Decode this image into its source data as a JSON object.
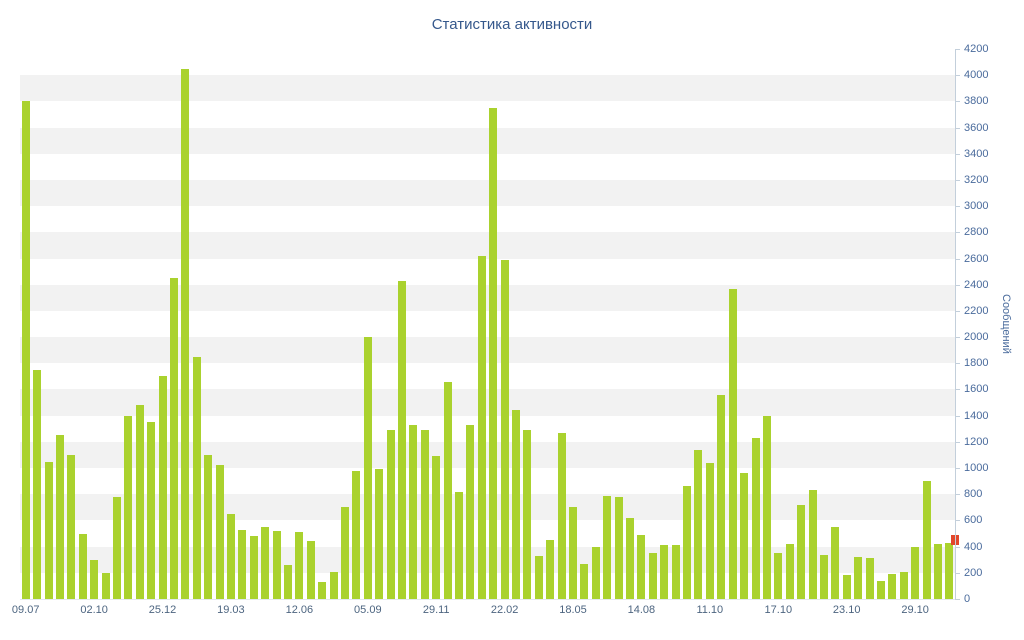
{
  "title": "Статистика активности",
  "y_axis": {
    "title": "Сообщений",
    "min": 0,
    "max": 4200,
    "tick_interval": 200
  },
  "x_axis": {
    "labels": [
      "09.07",
      "02.10",
      "25.12",
      "19.03",
      "12.06",
      "05.09",
      "29.11",
      "22.02",
      "18.05",
      "14.08",
      "11.10",
      "17.10",
      "23.10",
      "29.10"
    ],
    "label_positions": [
      0,
      6,
      12,
      18,
      24,
      30,
      36,
      42,
      48,
      54,
      60,
      66,
      72,
      78
    ]
  },
  "colors": {
    "bar": "#aad22e",
    "marker": "#e2472b",
    "title": "#35588c",
    "band": "#f2f2f2",
    "axis_line": "#c3cfdb",
    "y_text": "#4a6b9c",
    "x_text": "#4d6580"
  },
  "chart_data": {
    "type": "bar",
    "title": "Статистика активности",
    "xlabel": "",
    "ylabel": "Сообщений",
    "ylim": [
      0,
      4200
    ],
    "grid": "alternating-horizontal-bands",
    "legend": "off",
    "x_tick_labels": [
      "09.07",
      "02.10",
      "25.12",
      "19.03",
      "12.06",
      "05.09",
      "29.11",
      "22.02",
      "18.05",
      "14.08",
      "11.10",
      "17.10",
      "23.10",
      "29.10"
    ],
    "x_tick_positions": [
      0,
      6,
      12,
      18,
      24,
      30,
      36,
      42,
      48,
      54,
      60,
      66,
      72,
      78
    ],
    "values": [
      3800,
      1750,
      1050,
      1250,
      1100,
      500,
      300,
      200,
      780,
      1400,
      1480,
      1350,
      1700,
      2450,
      4050,
      1850,
      1100,
      1020,
      650,
      530,
      480,
      550,
      520,
      260,
      510,
      440,
      130,
      210,
      700,
      980,
      2000,
      990,
      1290,
      2430,
      1330,
      1290,
      1090,
      1660,
      820,
      1330,
      2620,
      3750,
      2590,
      1440,
      1290,
      330,
      450,
      1270,
      700,
      270,
      400,
      790,
      780,
      620,
      490,
      350,
      410,
      410,
      860,
      1140,
      1040,
      1560,
      2370,
      960,
      1230,
      1400,
      350,
      420,
      720,
      830,
      340,
      550,
      180,
      320,
      310,
      140,
      190,
      210,
      400,
      900,
      420,
      430
    ],
    "highlight_marker": {
      "position": 82,
      "value": 450,
      "color": "#e2472b"
    }
  }
}
